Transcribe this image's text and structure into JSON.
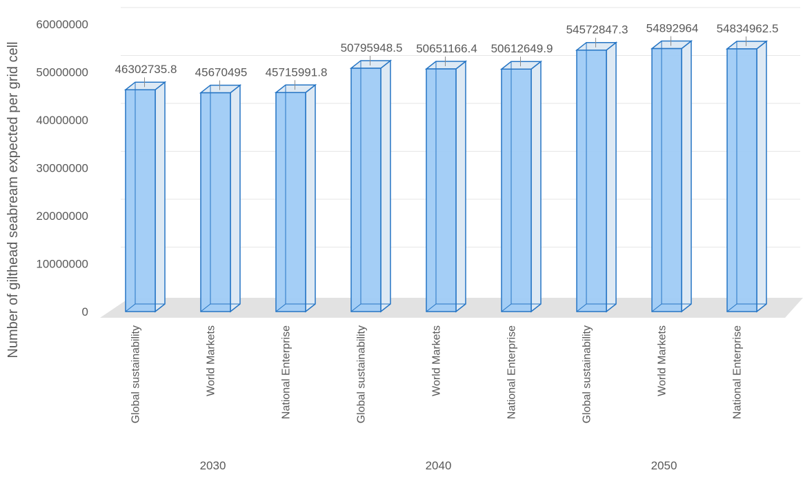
{
  "chart_data": {
    "type": "bar",
    "title": "",
    "xlabel": "",
    "ylabel": "Number of gilthead seabream expected per grid cell",
    "ylim": [
      0,
      60000000
    ],
    "yticks": [
      "0",
      "10000000",
      "20000000",
      "30000000",
      "40000000",
      "50000000",
      "60000000"
    ],
    "grid": true,
    "legend": "none",
    "groups": [
      {
        "label": "2030",
        "categories": [
          "Global sustainability",
          "World Markets",
          "National Enterprise"
        ]
      },
      {
        "label": "2040",
        "categories": [
          "Global sustainability",
          "World Markets",
          "National Enterprise"
        ]
      },
      {
        "label": "2050",
        "categories": [
          "Global sustainability",
          "World Markets",
          "National Enterprise"
        ]
      }
    ],
    "categories": [
      "Global sustainability",
      "World Markets",
      "National Enterprise",
      "Global sustainability",
      "World Markets",
      "National Enterprise",
      "Global sustainability",
      "World Markets",
      "National Enterprise"
    ],
    "values": [
      46302735.8,
      45670495,
      45715991.8,
      50795948.5,
      50651166.4,
      50612649.9,
      54572847.3,
      54892964,
      54834962.5
    ],
    "data_labels": [
      "46302735.8",
      "45670495",
      "45715991.8",
      "50795948.5",
      "50651166.4",
      "50612649.9",
      "54572847.3",
      "54892964",
      "54834962.5"
    ],
    "colors": {
      "bar_face": "#9fcbf5",
      "bar_side": "#dde9f4",
      "bar_edge": "#2474c4",
      "floor": "#e2e2e2",
      "grid": "#e6e6e6",
      "text": "#595959"
    }
  }
}
